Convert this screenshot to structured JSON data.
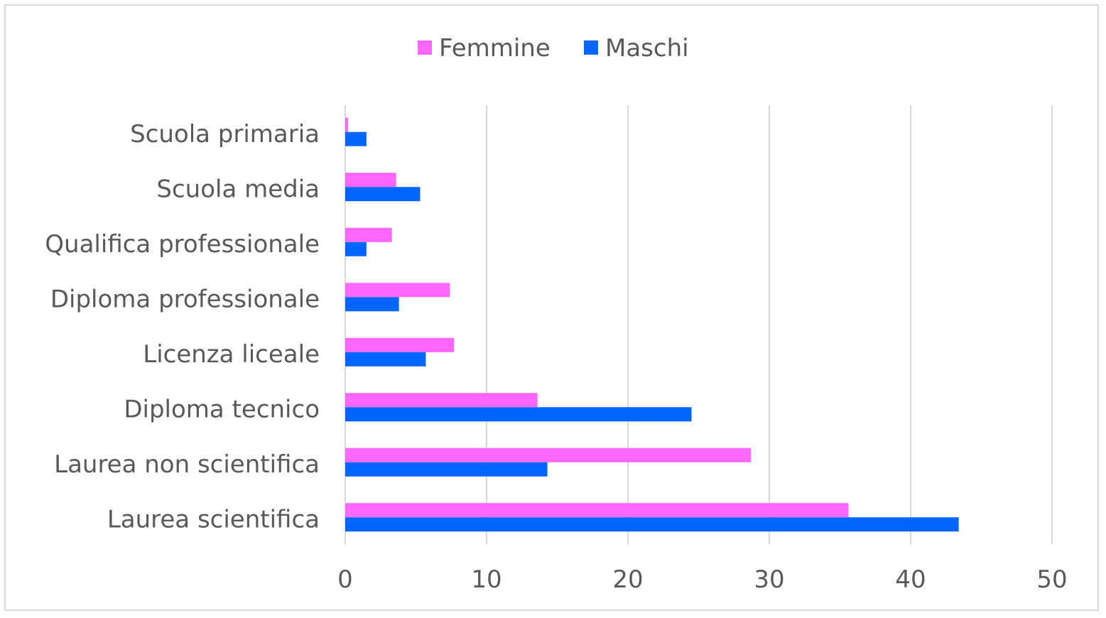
{
  "chart_data": {
    "type": "bar",
    "orientation": "horizontal",
    "title": "",
    "xlabel": "",
    "ylabel": "",
    "categories": [
      "Scuola primaria",
      "Scuola media",
      "Qualifica professionale",
      "Diploma professionale",
      "Licenza liceale",
      "Diploma tecnico",
      "Laurea non scientifica",
      "Laurea scientifica"
    ],
    "series": [
      {
        "name": "Femmine",
        "color": "#ff66ff",
        "values": [
          0.2,
          3.6,
          3.3,
          7.4,
          7.7,
          13.6,
          28.7,
          35.6
        ]
      },
      {
        "name": "Maschi",
        "color": "#0066ff",
        "values": [
          1.5,
          5.3,
          1.5,
          3.8,
          5.7,
          24.5,
          14.3,
          43.4
        ]
      }
    ],
    "xlim": [
      0,
      50
    ],
    "xticks": [
      0,
      10,
      20,
      30,
      40,
      50
    ],
    "grid": true,
    "legend": "top"
  }
}
